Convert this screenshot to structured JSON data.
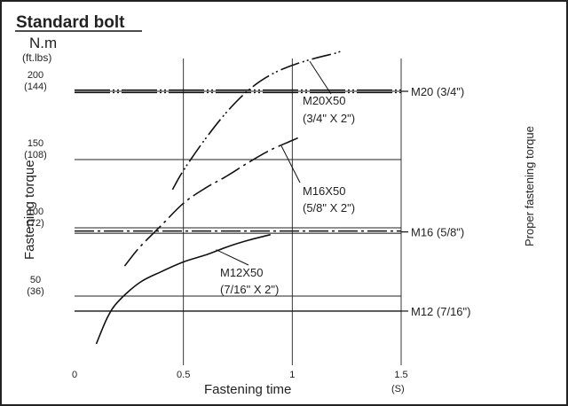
{
  "chart_data": {
    "type": "line",
    "title": "Standard bolt",
    "ylabel": "Fastening torque",
    "xlabel": "Fastening time",
    "x_unit": "(S)",
    "y_unit": "N.m",
    "y_unit_alt": "(ft.lbs)",
    "right_label": "Proper fastening torque",
    "xlim": [
      0,
      1.5
    ],
    "ylim": [
      0,
      230
    ],
    "x_ticks": [
      {
        "value": 0,
        "label": "0"
      },
      {
        "value": 0.5,
        "label": "0.5"
      },
      {
        "value": 1,
        "label": "1"
      },
      {
        "value": 1.5,
        "label": "1.5"
      }
    ],
    "y_ticks": [
      {
        "value": 50,
        "label": "50",
        "alt": "(36)"
      },
      {
        "value": 100,
        "label": "100",
        "alt": "(72)"
      },
      {
        "value": 150,
        "label": "150",
        "alt": "(108)"
      },
      {
        "value": 200,
        "label": "200",
        "alt": "(144)"
      }
    ],
    "grid": true,
    "series": [
      {
        "name": "M12X50",
        "name2": "(7/16\" X 2\")",
        "style": "solid",
        "x": [
          0.1,
          0.15,
          0.2,
          0.3,
          0.4,
          0.5,
          0.6,
          0.7,
          0.8,
          0.9
        ],
        "y": [
          15,
          34,
          46,
          60,
          68,
          75,
          80,
          86,
          91,
          95
        ]
      },
      {
        "name": "M16X50",
        "name2": "(5/8\" X 2\")",
        "style": "dashdot",
        "x": [
          0.23,
          0.3,
          0.4,
          0.5,
          0.6,
          0.7,
          0.8,
          0.9,
          1.0,
          1.04
        ],
        "y": [
          72,
          86,
          102,
          118,
          129,
          138,
          148,
          157,
          164,
          167
        ]
      },
      {
        "name": "M20X50",
        "name2": "(3/4\" X 2\")",
        "style": "dashdotdot",
        "x": [
          0.45,
          0.5,
          0.6,
          0.7,
          0.8,
          0.9,
          1.0,
          1.1,
          1.2,
          1.23
        ],
        "y": [
          128,
          142,
          165,
          185,
          201,
          212,
          219,
          224,
          228,
          230
        ]
      }
    ],
    "reference_lines": [
      {
        "label": "M20 (3/4\")",
        "y": 200,
        "style": "dotted-double"
      },
      {
        "label": "M16 (5/8\")",
        "y": 97,
        "style": "dashdot"
      },
      {
        "label": "M12 (7/16\")",
        "y": 39,
        "style": "solid"
      }
    ]
  }
}
